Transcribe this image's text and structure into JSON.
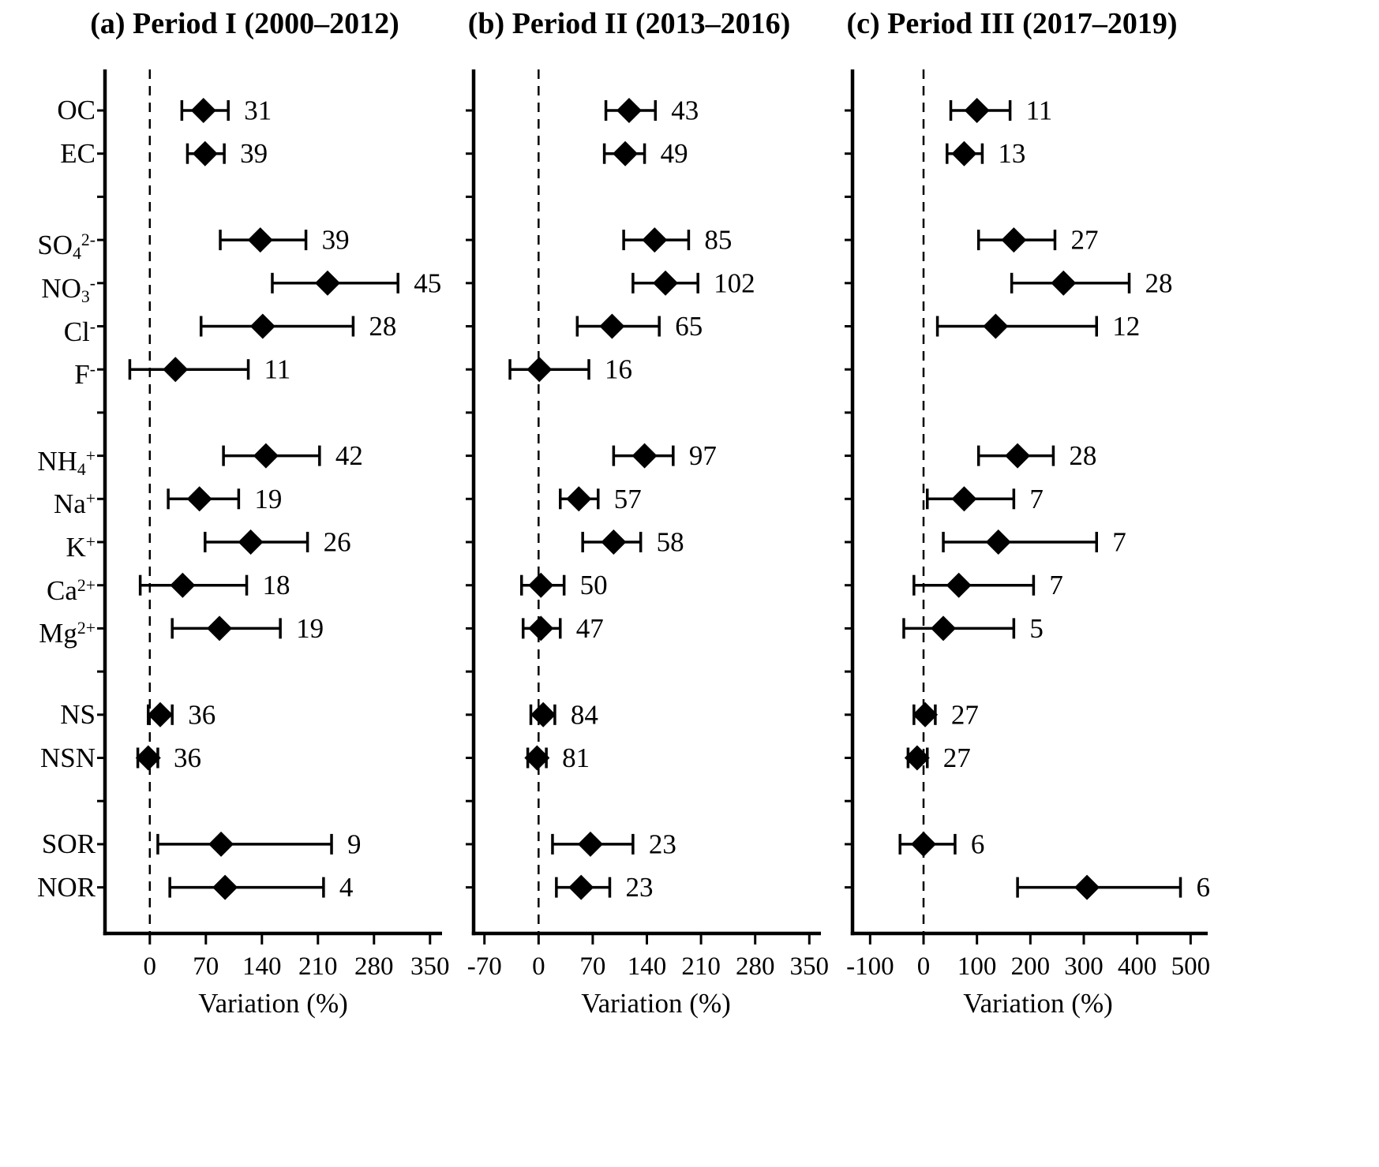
{
  "figure": {
    "background": "#ffffff",
    "ink": "#000000"
  },
  "chart_data": {
    "type": "scatter",
    "marker": "filled-diamond-with-horizontal-error-bars",
    "categories": [
      {
        "text": "OC"
      },
      {
        "text": "EC"
      },
      {
        "text": "SO",
        "sub": "4",
        "sup": "2-"
      },
      {
        "text": "NO",
        "sub": "3",
        "sup": "-"
      },
      {
        "text": "Cl",
        "sup": "-"
      },
      {
        "text": "F",
        "sup": "-"
      },
      {
        "text": "NH",
        "sub": "4",
        "sup": "+"
      },
      {
        "text": "Na",
        "sup": "+"
      },
      {
        "text": "K",
        "sup": "+"
      },
      {
        "text": "Ca",
        "sup": "2+"
      },
      {
        "text": "Mg",
        "sup": "2+"
      },
      {
        "text": "NS"
      },
      {
        "text": "NSN"
      },
      {
        "text": "SOR"
      },
      {
        "text": "NOR"
      }
    ],
    "row_slots": [
      0,
      1,
      3,
      4,
      5,
      6,
      8,
      9,
      10,
      11,
      12,
      14,
      15,
      17,
      18
    ],
    "slot_count": 19,
    "panels": [
      {
        "label": "(a) Period I (2000–2012)",
        "xlabel": "Variation (%)",
        "xticks": [
          0,
          70,
          140,
          210,
          280,
          350
        ],
        "xlim": [
          -56,
          365
        ],
        "points": [
          {
            "value": 67,
            "low": 40,
            "high": 98,
            "n": 31
          },
          {
            "value": 69,
            "low": 47,
            "high": 93,
            "n": 39
          },
          {
            "value": 138,
            "low": 88,
            "high": 195,
            "n": 39
          },
          {
            "value": 222,
            "low": 153,
            "high": 310,
            "n": 45
          },
          {
            "value": 141,
            "low": 64,
            "high": 254,
            "n": 28
          },
          {
            "value": 32,
            "low": -25,
            "high": 123,
            "n": 11
          },
          {
            "value": 145,
            "low": 92,
            "high": 212,
            "n": 42
          },
          {
            "value": 62,
            "low": 23,
            "high": 111,
            "n": 19
          },
          {
            "value": 126,
            "low": 69,
            "high": 197,
            "n": 26
          },
          {
            "value": 41,
            "low": -12,
            "high": 121,
            "n": 18
          },
          {
            "value": 87,
            "low": 28,
            "high": 163,
            "n": 19
          },
          {
            "value": 13,
            "low": -2,
            "high": 28,
            "n": 36
          },
          {
            "value": -2,
            "low": -15,
            "high": 10,
            "n": 36
          },
          {
            "value": 89,
            "low": 10,
            "high": 227,
            "n": 9
          },
          {
            "value": 94,
            "low": 25,
            "high": 217,
            "n": 4
          }
        ]
      },
      {
        "label": "(b) Period II (2013–2016)",
        "xlabel": "Variation (%)",
        "xticks": [
          -70,
          0,
          70,
          140,
          210,
          280,
          350
        ],
        "xlim": [
          -84,
          365
        ],
        "points": [
          {
            "value": 117,
            "low": 87,
            "high": 151,
            "n": 43
          },
          {
            "value": 112,
            "low": 85,
            "high": 137,
            "n": 49
          },
          {
            "value": 150,
            "low": 110,
            "high": 194,
            "n": 85
          },
          {
            "value": 164,
            "low": 122,
            "high": 206,
            "n": 102
          },
          {
            "value": 95,
            "low": 50,
            "high": 156,
            "n": 65
          },
          {
            "value": 1,
            "low": -37,
            "high": 65,
            "n": 16
          },
          {
            "value": 137,
            "low": 97,
            "high": 174,
            "n": 97
          },
          {
            "value": 52,
            "low": 28,
            "high": 77,
            "n": 57
          },
          {
            "value": 97,
            "low": 57,
            "high": 132,
            "n": 58
          },
          {
            "value": 3,
            "low": -22,
            "high": 33,
            "n": 50
          },
          {
            "value": 3,
            "low": -20,
            "high": 28,
            "n": 47
          },
          {
            "value": 6,
            "low": -10,
            "high": 21,
            "n": 84
          },
          {
            "value": -2,
            "low": -14,
            "high": 10,
            "n": 81
          },
          {
            "value": 67,
            "low": 18,
            "high": 122,
            "n": 23
          },
          {
            "value": 55,
            "low": 23,
            "high": 92,
            "n": 23
          }
        ]
      },
      {
        "label": "(c) Period III (2017–2019)",
        "xlabel": "Variation (%)",
        "xticks": [
          -100,
          0,
          100,
          200,
          300,
          400,
          500
        ],
        "xlim": [
          -133,
          532
        ],
        "points": [
          {
            "value": 100,
            "low": 51,
            "high": 162,
            "n": 11
          },
          {
            "value": 76,
            "low": 44,
            "high": 110,
            "n": 13
          },
          {
            "value": 169,
            "low": 103,
            "high": 246,
            "n": 27
          },
          {
            "value": 262,
            "low": 165,
            "high": 385,
            "n": 28
          },
          {
            "value": 135,
            "low": 26,
            "high": 324,
            "n": 12
          },
          null,
          {
            "value": 176,
            "low": 103,
            "high": 243,
            "n": 28
          },
          {
            "value": 76,
            "low": 7,
            "high": 169,
            "n": 7
          },
          {
            "value": 140,
            "low": 37,
            "high": 324,
            "n": 7
          },
          {
            "value": 66,
            "low": -18,
            "high": 206,
            "n": 7
          },
          {
            "value": 37,
            "low": -37,
            "high": 169,
            "n": 5
          },
          {
            "value": 3,
            "low": -18,
            "high": 22,
            "n": 27
          },
          {
            "value": -12,
            "low": -29,
            "high": 7,
            "n": 27
          },
          {
            "value": 0,
            "low": -44,
            "high": 59,
            "n": 6
          },
          {
            "value": 306,
            "low": 176,
            "high": 481,
            "n": 6
          }
        ]
      }
    ]
  }
}
